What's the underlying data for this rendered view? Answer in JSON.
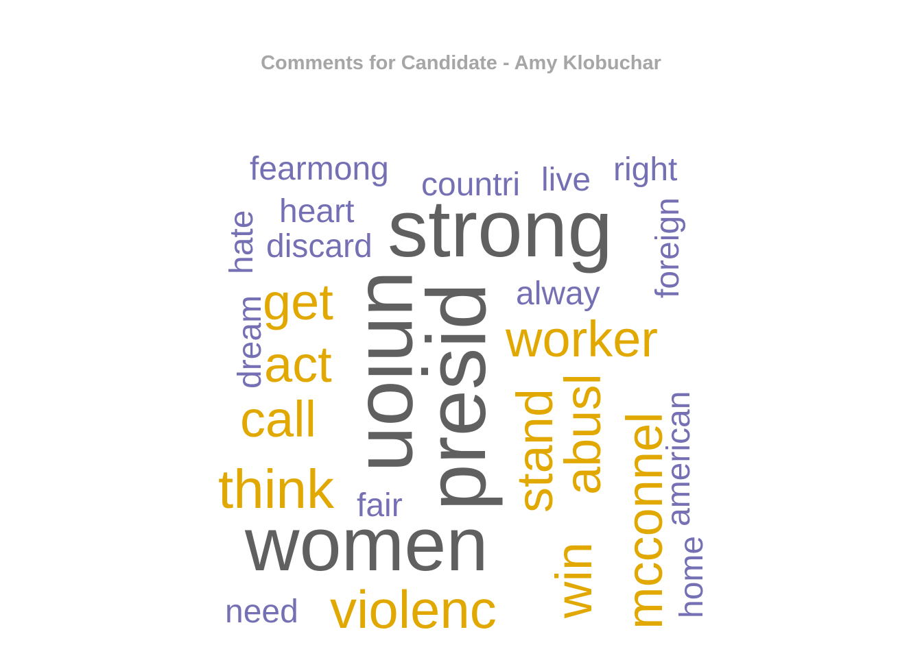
{
  "chart_data": {
    "type": "wordcloud",
    "title": "Comments for Candidate - Amy Klobuchar",
    "colors": {
      "high": "#606060",
      "mid": "#e0a800",
      "low": "#7570b3"
    },
    "words": [
      {
        "text": "strong",
        "weight": 3,
        "group": "high",
        "rotate": 0
      },
      {
        "text": "union",
        "weight": 3,
        "group": "high",
        "rotate": 90
      },
      {
        "text": "presid",
        "weight": 3,
        "group": "high",
        "rotate": -90
      },
      {
        "text": "women",
        "weight": 3,
        "group": "high",
        "rotate": 0
      },
      {
        "text": "get",
        "weight": 2,
        "group": "mid",
        "rotate": 0
      },
      {
        "text": "act",
        "weight": 2,
        "group": "mid",
        "rotate": 0
      },
      {
        "text": "call",
        "weight": 2,
        "group": "mid",
        "rotate": 0
      },
      {
        "text": "think",
        "weight": 2,
        "group": "mid",
        "rotate": 0
      },
      {
        "text": "worker",
        "weight": 2,
        "group": "mid",
        "rotate": 0
      },
      {
        "text": "stand",
        "weight": 2,
        "group": "mid",
        "rotate": -90
      },
      {
        "text": "abusl",
        "weight": 2,
        "group": "mid",
        "rotate": -90
      },
      {
        "text": "mcconnel",
        "weight": 2,
        "group": "mid",
        "rotate": -90
      },
      {
        "text": "win",
        "weight": 2,
        "group": "mid",
        "rotate": -90
      },
      {
        "text": "violenc",
        "weight": 2,
        "group": "mid",
        "rotate": 0
      },
      {
        "text": "fearmong",
        "weight": 1,
        "group": "low",
        "rotate": 0
      },
      {
        "text": "countri",
        "weight": 1,
        "group": "low",
        "rotate": 0
      },
      {
        "text": "live",
        "weight": 1,
        "group": "low",
        "rotate": 0
      },
      {
        "text": "right",
        "weight": 1,
        "group": "low",
        "rotate": 0
      },
      {
        "text": "heart",
        "weight": 1,
        "group": "low",
        "rotate": 0
      },
      {
        "text": "discard",
        "weight": 1,
        "group": "low",
        "rotate": 0
      },
      {
        "text": "hate",
        "weight": 1,
        "group": "low",
        "rotate": -90
      },
      {
        "text": "foreign",
        "weight": 1,
        "group": "low",
        "rotate": -90
      },
      {
        "text": "alway",
        "weight": 1,
        "group": "low",
        "rotate": 0
      },
      {
        "text": "dream",
        "weight": 1,
        "group": "low",
        "rotate": -90
      },
      {
        "text": "american",
        "weight": 1,
        "group": "low",
        "rotate": -90
      },
      {
        "text": "fair",
        "weight": 1,
        "group": "low",
        "rotate": 0
      },
      {
        "text": "home",
        "weight": 1,
        "group": "low",
        "rotate": -90
      },
      {
        "text": "need",
        "weight": 1,
        "group": "low",
        "rotate": 0
      }
    ]
  }
}
